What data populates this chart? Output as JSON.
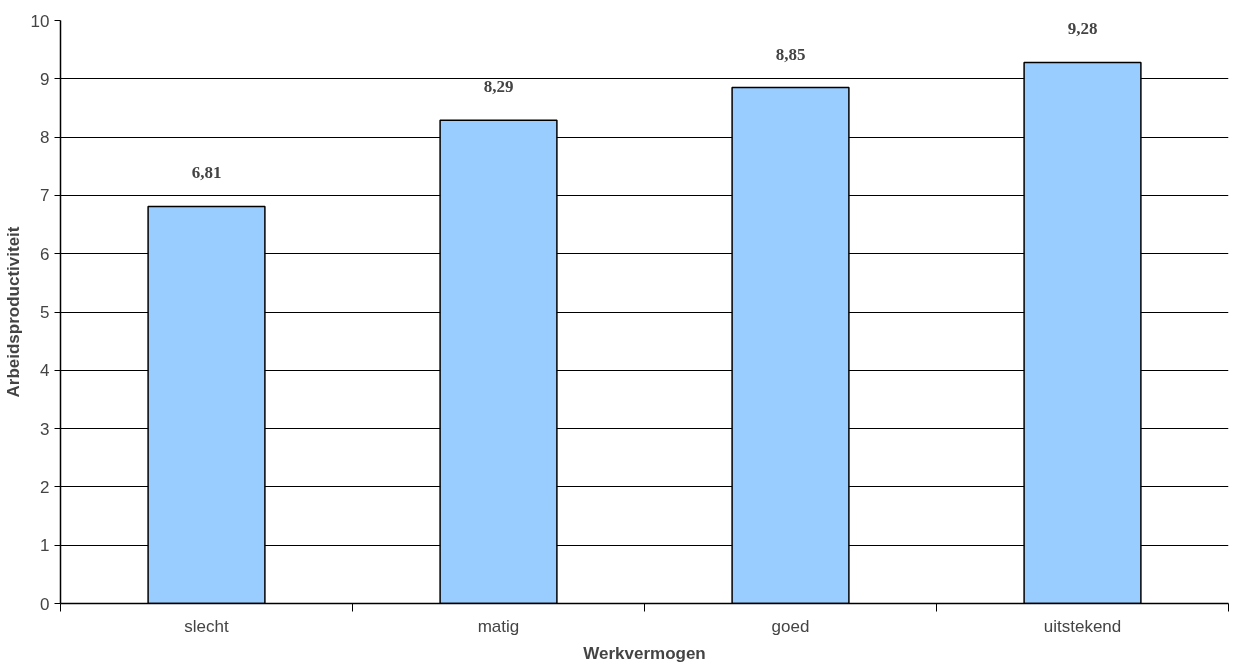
{
  "chart_data": {
    "type": "bar",
    "xlabel": "Werkvermogen",
    "ylabel": "Arbeidsproductiviteit",
    "categories": [
      "slecht",
      "matig",
      "goed",
      "uitstekend"
    ],
    "values": [
      6.81,
      8.29,
      8.85,
      9.28
    ],
    "value_labels": [
      "6,81",
      "8,29",
      "8,85",
      "9,28"
    ],
    "color": "#99ccff",
    "ylim": [
      0,
      10
    ],
    "yticks": [
      0,
      1,
      2,
      3,
      4,
      5,
      6,
      7,
      8,
      9,
      10
    ],
    "grid": "y"
  }
}
